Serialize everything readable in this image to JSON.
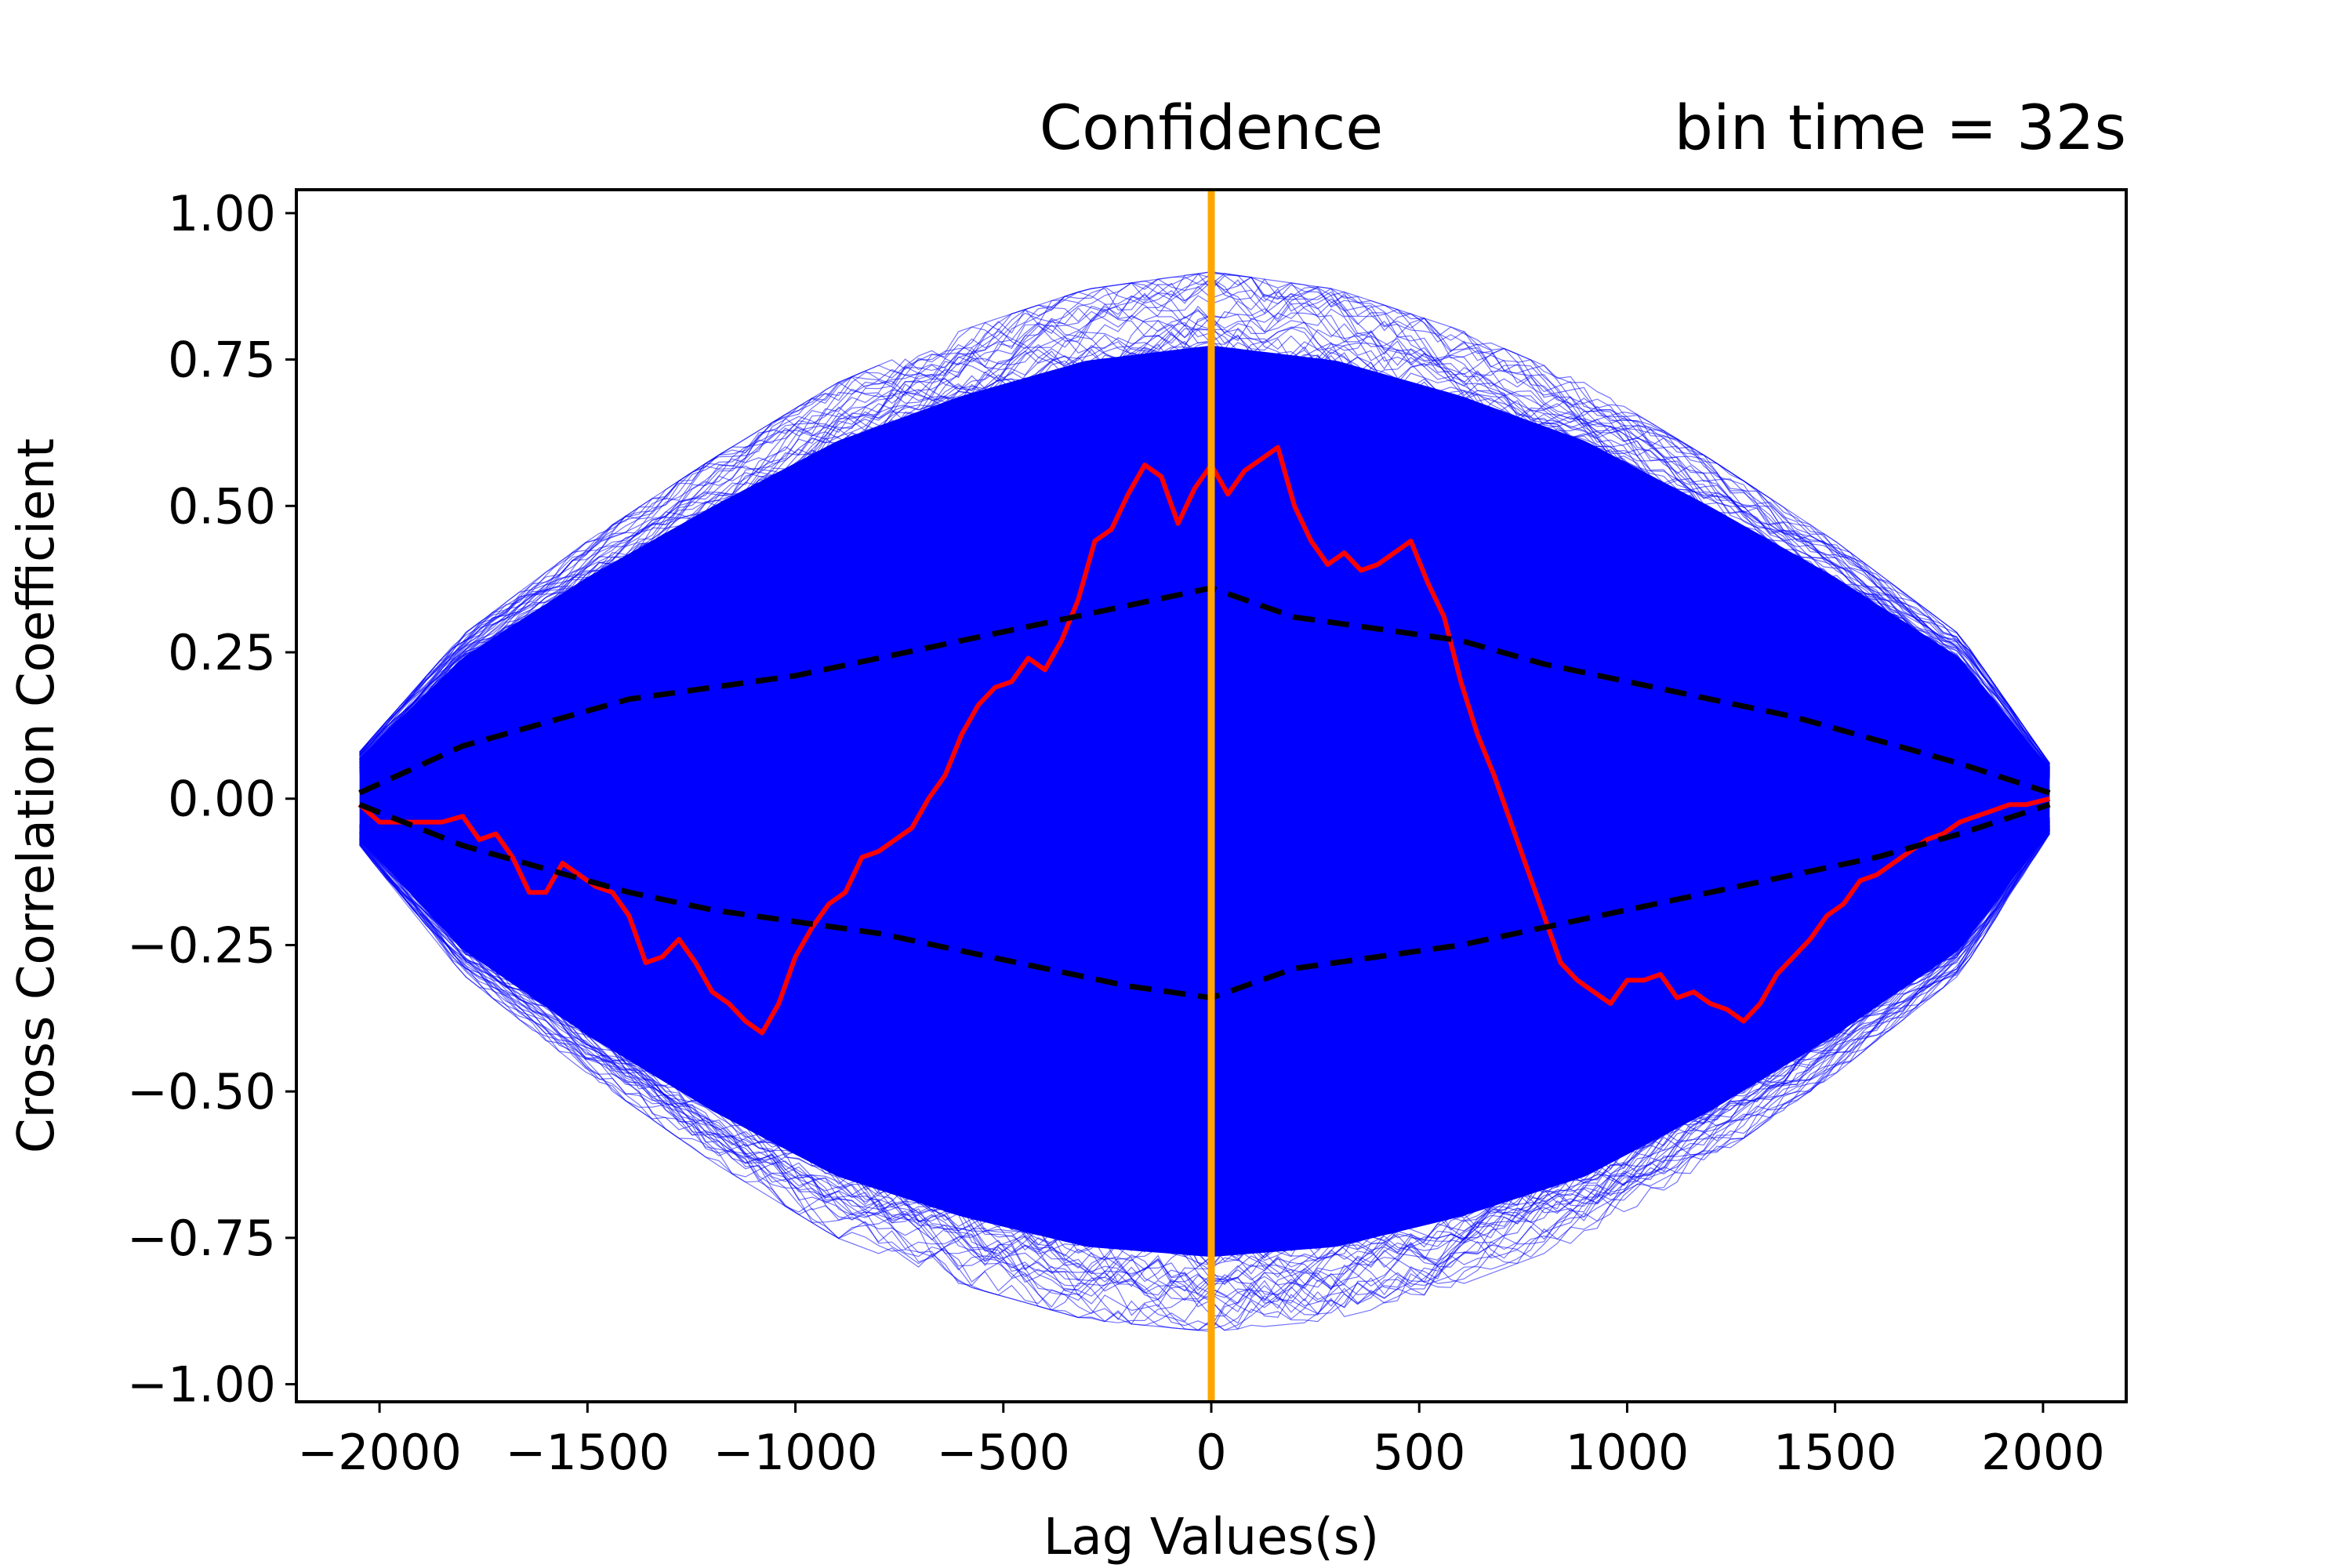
{
  "chart_data": {
    "type": "line",
    "title_center": "Confidence",
    "title_right": "bin time = 32s",
    "xlabel": "Lag Values(s)",
    "ylabel": "Cross Correlation Coefficient",
    "xlim": [
      -2200,
      2200
    ],
    "ylim": [
      -1.03,
      1.04
    ],
    "x_ticks": [
      -2000,
      -1500,
      -1000,
      -500,
      0,
      500,
      1000,
      1500,
      2000
    ],
    "x_tick_labels": [
      "−2000",
      "−1500",
      "−1000",
      "−500",
      "0",
      "500",
      "1000",
      "1500",
      "2000"
    ],
    "y_ticks": [
      1.0,
      0.75,
      0.5,
      0.25,
      0.0,
      -0.25,
      -0.5,
      -0.75,
      -1.0
    ],
    "y_tick_labels": [
      "1.00",
      "0.75",
      "0.50",
      "0.25",
      "0.00",
      "−0.25",
      "−0.50",
      "−0.75",
      "−1.00"
    ],
    "grid": false,
    "colors": {
      "simulations": "#0000ff",
      "observed": "#ff0000",
      "confidence": "#000000",
      "zero_lag": "#ffa500"
    },
    "simulation_envelope": {
      "x": [
        -2048,
        -1800,
        -1500,
        -1200,
        -900,
        -600,
        -300,
        0,
        300,
        600,
        900,
        1200,
        1500,
        1800,
        2016
      ],
      "upper": [
        0.08,
        0.28,
        0.44,
        0.58,
        0.71,
        0.8,
        0.87,
        0.9,
        0.87,
        0.8,
        0.71,
        0.58,
        0.44,
        0.28,
        0.06
      ],
      "lower": [
        -0.08,
        -0.3,
        -0.47,
        -0.62,
        -0.75,
        -0.83,
        -0.89,
        -0.91,
        -0.89,
        -0.83,
        -0.75,
        -0.62,
        -0.47,
        -0.3,
        -0.06
      ]
    },
    "series": [
      {
        "x": [
          -2048,
          -2000,
          -1950,
          -1900,
          -1850,
          -1800,
          -1760,
          -1720,
          -1680,
          -1640,
          -1600,
          -1560,
          -1520,
          -1480,
          -1440,
          -1400,
          -1360,
          -1320,
          -1280,
          -1240,
          -1200,
          -1160,
          -1120,
          -1080,
          -1040,
          -1000,
          -960,
          -920,
          -880,
          -840,
          -800,
          -760,
          -720,
          -680,
          -640,
          -600,
          -560,
          -520,
          -480,
          -440,
          -400,
          -360,
          -320,
          -280,
          -240,
          -200,
          -160,
          -120,
          -80,
          -40,
          0,
          40,
          80,
          120,
          160,
          200,
          240,
          280,
          320,
          360,
          400,
          440,
          480,
          520,
          560,
          600,
          640,
          680,
          720,
          760,
          800,
          840,
          880,
          920,
          960,
          1000,
          1040,
          1080,
          1120,
          1160,
          1200,
          1240,
          1280,
          1320,
          1360,
          1400,
          1440,
          1480,
          1520,
          1560,
          1600,
          1640,
          1680,
          1720,
          1760,
          1800,
          1840,
          1880,
          1920,
          1960,
          2016
        ],
        "y": [
          -0.01,
          -0.04,
          -0.04,
          -0.04,
          -0.04,
          -0.03,
          -0.07,
          -0.06,
          -0.1,
          -0.16,
          -0.16,
          -0.11,
          -0.13,
          -0.15,
          -0.16,
          -0.2,
          -0.28,
          -0.27,
          -0.24,
          -0.28,
          -0.33,
          -0.35,
          -0.38,
          -0.4,
          -0.35,
          -0.27,
          -0.22,
          -0.18,
          -0.16,
          -0.1,
          -0.09,
          -0.07,
          -0.05,
          0.0,
          0.04,
          0.11,
          0.16,
          0.19,
          0.2,
          0.24,
          0.22,
          0.27,
          0.34,
          0.44,
          0.46,
          0.52,
          0.57,
          0.55,
          0.47,
          0.53,
          0.57,
          0.52,
          0.56,
          0.58,
          0.6,
          0.5,
          0.44,
          0.4,
          0.42,
          0.39,
          0.4,
          0.42,
          0.44,
          0.37,
          0.31,
          0.2,
          0.11,
          0.04,
          -0.04,
          -0.12,
          -0.2,
          -0.28,
          -0.31,
          -0.33,
          -0.35,
          -0.31,
          -0.31,
          -0.3,
          -0.34,
          -0.33,
          -0.35,
          -0.36,
          -0.38,
          -0.35,
          -0.3,
          -0.27,
          -0.24,
          -0.2,
          -0.18,
          -0.14,
          -0.13,
          -0.11,
          -0.09,
          -0.07,
          -0.06,
          -0.04,
          -0.03,
          -0.02,
          -0.01,
          -0.01,
          0.0
        ]
      },
      {
        "x": [
          -2048,
          -1800,
          -1600,
          -1400,
          -1200,
          -1000,
          -800,
          -600,
          -400,
          -200,
          0,
          200,
          400,
          600,
          800,
          1000,
          1200,
          1400,
          1600,
          1800,
          2016
        ],
        "y": [
          0.01,
          0.09,
          0.13,
          0.17,
          0.19,
          0.21,
          0.24,
          0.27,
          0.3,
          0.33,
          0.36,
          0.31,
          0.29,
          0.27,
          0.23,
          0.2,
          0.17,
          0.14,
          0.1,
          0.06,
          0.01
        ]
      },
      {
        "x": [
          -2048,
          -1800,
          -1600,
          -1400,
          -1200,
          -1000,
          -800,
          -600,
          -400,
          -200,
          0,
          200,
          400,
          600,
          800,
          1000,
          1200,
          1400,
          1600,
          1800,
          2016
        ],
        "y": [
          -0.01,
          -0.08,
          -0.12,
          -0.16,
          -0.19,
          -0.21,
          -0.23,
          -0.26,
          -0.29,
          -0.32,
          -0.34,
          -0.29,
          -0.27,
          -0.25,
          -0.22,
          -0.19,
          -0.16,
          -0.13,
          -0.1,
          -0.06,
          -0.01
        ]
      },
      {
        "x": [
          0,
          0
        ],
        "y": [
          -1.03,
          1.04
        ]
      }
    ]
  }
}
